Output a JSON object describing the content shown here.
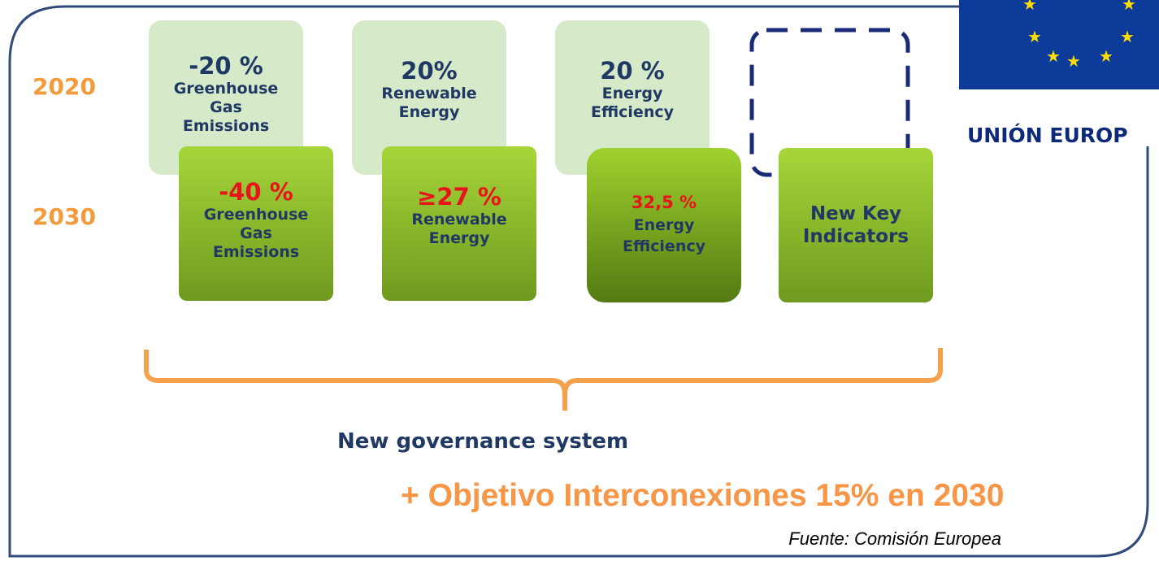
{
  "years": [
    "2020",
    "2030"
  ],
  "targets_2020": [
    {
      "value": "-20 %",
      "label": "Greenhouse Gas Emissions"
    },
    {
      "value": "20%",
      "label": "Renewable Energy"
    },
    {
      "value": "20 %",
      "label": "Energy Efficiency"
    }
  ],
  "targets_2030": [
    {
      "value": "-40 %",
      "label": "Greenhouse Gas Emissions"
    },
    {
      "value": "≥27 %",
      "label": "Renewable Energy"
    },
    {
      "value": "32,5 %",
      "label": "Energy Efficiency"
    },
    {
      "label": "New Key Indicators"
    }
  ],
  "logo_text": "UNIÓN EUROP",
  "governance": "New governance system",
  "objective": "+ Objetivo Interconexiones 15% en 2030",
  "source": "Fuente: Comisión Europea"
}
